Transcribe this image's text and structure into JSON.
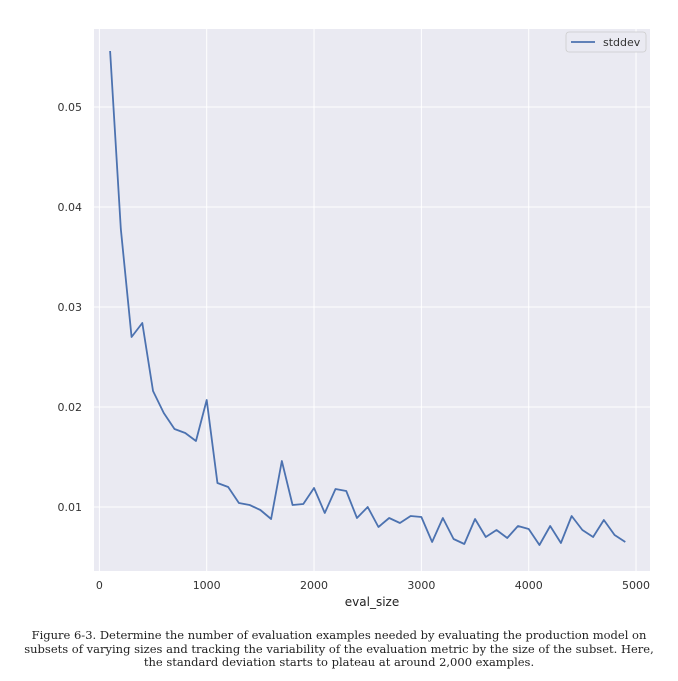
{
  "chart_data": {
    "type": "line",
    "xlabel": "eval_size",
    "ylabel": "",
    "xlim": [
      -50,
      5130
    ],
    "ylim": [
      0.0036,
      0.0578
    ],
    "xticks": [
      0,
      1000,
      2000,
      3000,
      4000,
      5000
    ],
    "yticks": [
      0.01,
      0.02,
      0.03,
      0.04,
      0.05
    ],
    "xtick_labels": [
      "0",
      "1000",
      "2000",
      "3000",
      "4000",
      "5000"
    ],
    "ytick_labels": [
      "0.01",
      "0.02",
      "0.03",
      "0.04",
      "0.05"
    ],
    "grid": true,
    "legend_position": "upper-right",
    "line_color": "#4c72b0",
    "background_color": "#eaeaf2",
    "series": [
      {
        "name": "stddev",
        "x": [
          100,
          200,
          300,
          400,
          500,
          600,
          700,
          800,
          900,
          1000,
          1100,
          1200,
          1300,
          1400,
          1500,
          1600,
          1700,
          1800,
          1900,
          2000,
          2100,
          2200,
          2300,
          2400,
          2500,
          2600,
          2700,
          2800,
          2900,
          3000,
          3100,
          3200,
          3300,
          3400,
          3500,
          3600,
          3700,
          3800,
          3900,
          4000,
          4100,
          4200,
          4300,
          4400,
          4500,
          4600,
          4700,
          4800,
          4900
        ],
        "values": [
          0.0556,
          0.0378,
          0.027,
          0.0284,
          0.0216,
          0.0194,
          0.0178,
          0.0174,
          0.0166,
          0.0207,
          0.0124,
          0.012,
          0.0104,
          0.0102,
          0.0097,
          0.0088,
          0.0146,
          0.0102,
          0.0103,
          0.0119,
          0.0094,
          0.0118,
          0.0116,
          0.0089,
          0.01,
          0.008,
          0.0089,
          0.0084,
          0.0091,
          0.009,
          0.0065,
          0.0089,
          0.0068,
          0.0063,
          0.0088,
          0.007,
          0.0077,
          0.0069,
          0.0081,
          0.0078,
          0.0062,
          0.0081,
          0.0064,
          0.0091,
          0.0077,
          0.007,
          0.0087,
          0.0072,
          0.0065
        ]
      }
    ]
  },
  "caption": "Figure 6-3. Determine the number of evaluation examples needed by evaluating the production model on subsets of varying sizes and tracking the variability of the evaluation metric by the size of the subset. Here, the standard deviation starts to plateau at around 2,000 examples."
}
